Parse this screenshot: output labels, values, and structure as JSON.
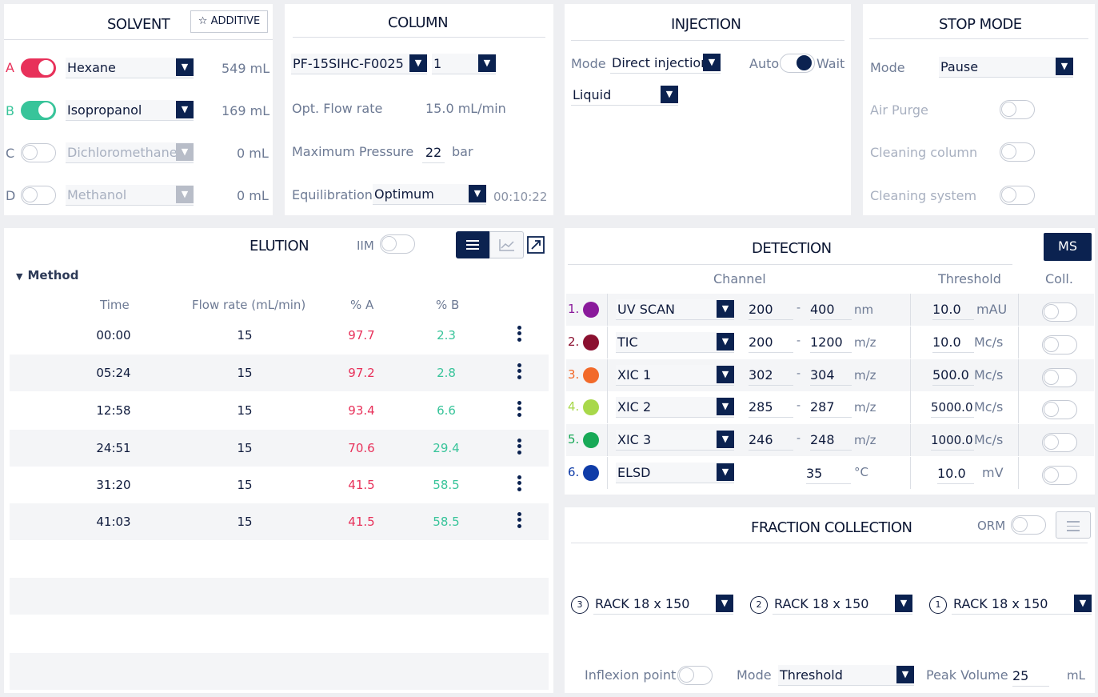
{
  "solvent": {
    "title": "SOLVENT",
    "additive_label": "ADDITIVE",
    "rows": [
      {
        "letter": "A",
        "name": "Hexane",
        "volume": "549 mL",
        "color": "#e8315a"
      },
      {
        "letter": "B",
        "name": "Isopropanol",
        "volume": "169 mL",
        "color": "#38c49a"
      },
      {
        "letter": "C",
        "name": "Dichloromethane",
        "volume": "0 mL",
        "color": "#8a93a6"
      },
      {
        "letter": "D",
        "name": "Methanol",
        "volume": "0 mL",
        "color": "#8a93a6"
      }
    ]
  },
  "column": {
    "title": "COLUMN",
    "column_id": "PF-15SIHC-F0025",
    "column_count": "1",
    "flow_label": "Opt. Flow rate",
    "flow_value": "15.0 mL/min",
    "pressure_label": "Maximum Pressure",
    "pressure_value": "22",
    "pressure_unit": "bar",
    "equil_label": "Equilibration",
    "equil_value": "Optimum",
    "equil_time": "00:10:22"
  },
  "injection": {
    "title": "INJECTION",
    "mode_label": "Mode",
    "mode_value": "Direct injection",
    "auto_label": "Auto",
    "wait_label": "Wait",
    "type_value": "Liquid"
  },
  "stop_mode": {
    "title": "STOP MODE",
    "mode_label": "Mode",
    "mode_value": "Pause",
    "air_purge": "Air Purge",
    "cleaning_column": "Cleaning column",
    "cleaning_system": "Cleaning system"
  },
  "elution": {
    "title": "ELUTION",
    "iim_label": "IIM",
    "method_label": "Method",
    "headers": {
      "time": "Time",
      "flow": "Flow rate (mL/min)",
      "a": "% A",
      "b": "% B"
    },
    "rows": [
      {
        "time": "00:00",
        "flow": "15",
        "a": "97.7",
        "b": "2.3"
      },
      {
        "time": "05:24",
        "flow": "15",
        "a": "97.2",
        "b": "2.8"
      },
      {
        "time": "12:58",
        "flow": "15",
        "a": "93.4",
        "b": "6.6"
      },
      {
        "time": "24:51",
        "flow": "15",
        "a": "70.6",
        "b": "29.4"
      },
      {
        "time": "31:20",
        "flow": "15",
        "a": "41.5",
        "b": "58.5"
      },
      {
        "time": "41:03",
        "flow": "15",
        "a": "41.5",
        "b": "58.5"
      }
    ]
  },
  "detection": {
    "title": "DETECTION",
    "ms_label": "MS",
    "channel_header": "Channel",
    "threshold_header": "Threshold",
    "coll_header": "Coll.",
    "rows": [
      {
        "num": "1.",
        "color": "#8a1a9b",
        "name": "UV SCAN",
        "from": "200",
        "to": "400",
        "unit": "nm",
        "threshold": "10.0",
        "tunit": "mAU"
      },
      {
        "num": "2.",
        "color": "#8b1030",
        "name": "TIC",
        "from": "200",
        "to": "1200",
        "unit": "m/z",
        "threshold": "10.0",
        "tunit": "Mc/s"
      },
      {
        "num": "3.",
        "color": "#f26a2a",
        "name": "XIC 1",
        "from": "302",
        "to": "304",
        "unit": "m/z",
        "threshold": "500.0",
        "tunit": "Mc/s"
      },
      {
        "num": "4.",
        "color": "#a8d84a",
        "name": "XIC 2",
        "from": "285",
        "to": "287",
        "unit": "m/z",
        "threshold": "5000.0",
        "tunit": "Mc/s"
      },
      {
        "num": "5.",
        "color": "#18a957",
        "name": "XIC 3",
        "from": "246",
        "to": "248",
        "unit": "m/z",
        "threshold": "1000.0",
        "tunit": "Mc/s"
      },
      {
        "num": "6.",
        "color": "#0f3ca8",
        "name": "ELSD",
        "from": "",
        "to": "35",
        "unit": "°C",
        "threshold": "10.0",
        "tunit": "mV"
      }
    ]
  },
  "fraction": {
    "title": "FRACTION COLLECTION",
    "orm_label": "ORM",
    "racks": [
      {
        "num": "3",
        "name": "RACK 18 x 150"
      },
      {
        "num": "2",
        "name": "RACK 18 x 150"
      },
      {
        "num": "1",
        "name": "RACK 18 x 150"
      }
    ],
    "inflexion_label": "Inflexion point",
    "mode_label": "Mode",
    "mode_value": "Threshold",
    "peak_label": "Peak Volume",
    "peak_value": "25",
    "peak_unit": "mL"
  }
}
